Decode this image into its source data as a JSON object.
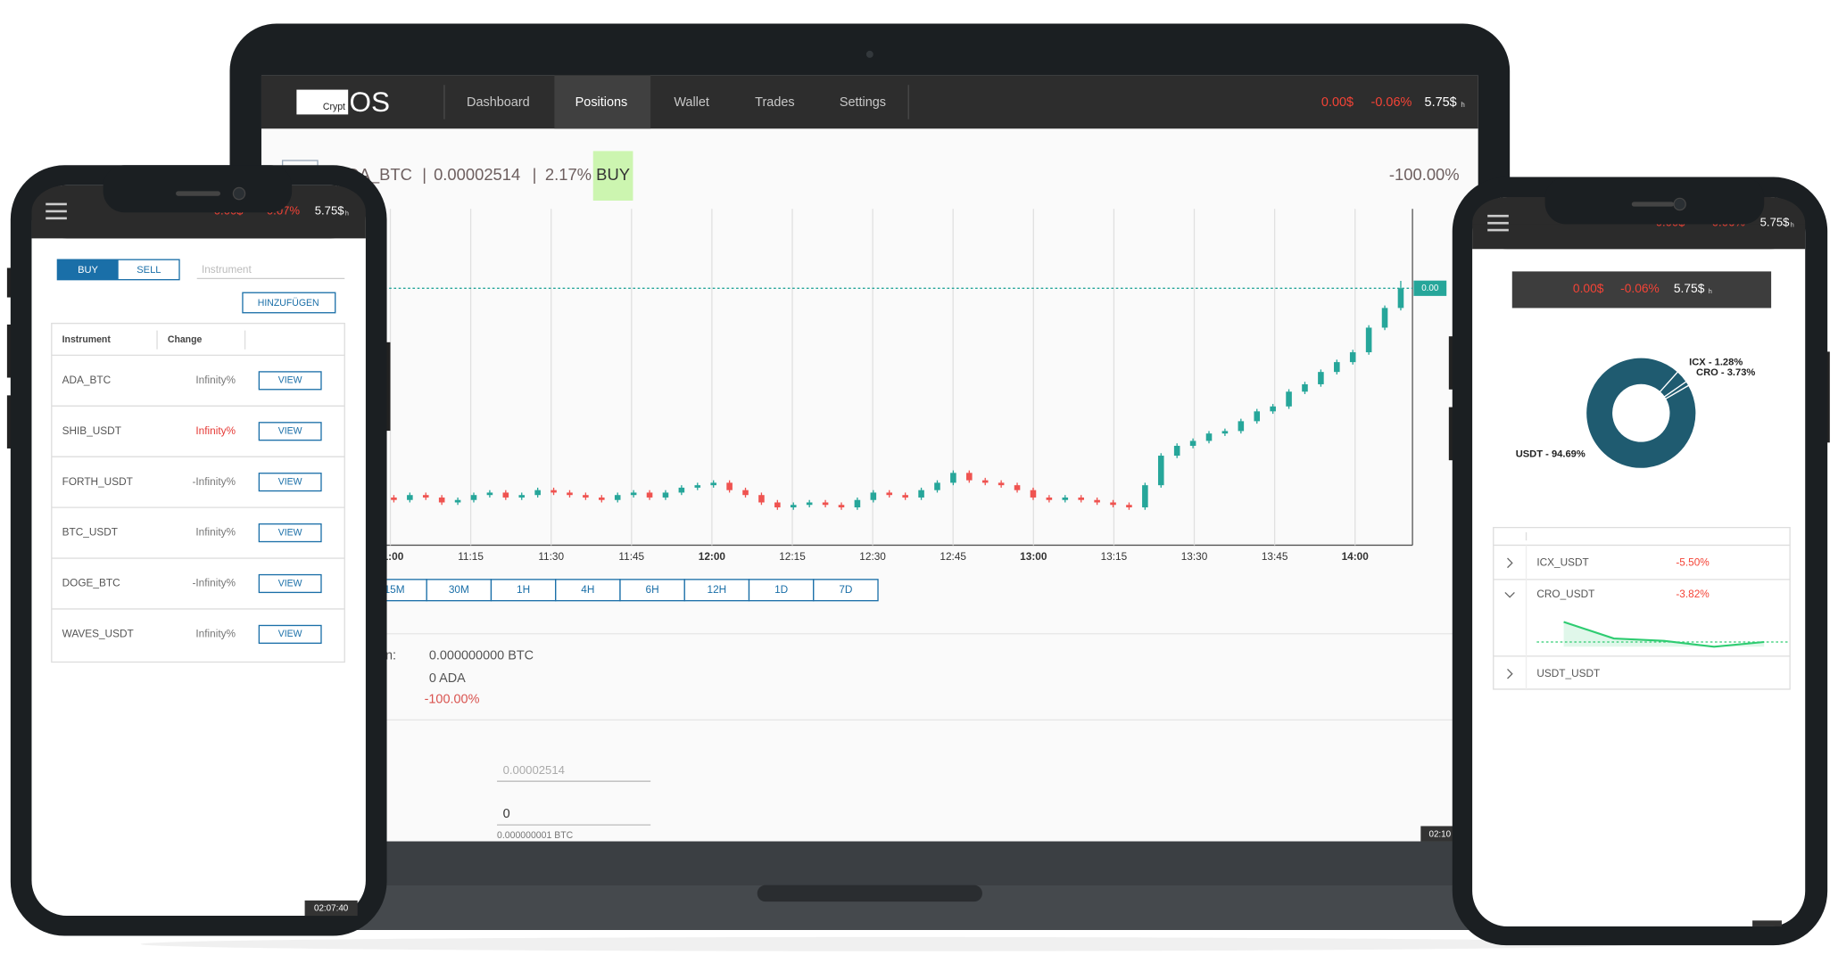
{
  "laptop": {
    "logo": {
      "small": "Crypt",
      "large": "OS"
    },
    "nav": [
      "Dashboard",
      "Positions",
      "Wallet",
      "Trades",
      "Settings"
    ],
    "active_nav": 1,
    "ticker": {
      "profit": "0.00$",
      "change": "-0.06%",
      "balance": "5.75$",
      "unit": "h"
    },
    "header": {
      "pair": "ADA_BTC",
      "separator": "|",
      "price": "0.00002514",
      "change": "2.17%",
      "signal": "BUY",
      "total": "-100.00%"
    },
    "timeframes": [
      "15M",
      "30M",
      "1H",
      "4H",
      "6H",
      "12H",
      "1D",
      "7D"
    ],
    "position": {
      "label": "Position:",
      "btc": "0.000000000 BTC",
      "ada": "0 ADA",
      "pnl": "-100.00%"
    },
    "order": {
      "price": "0.00002514",
      "amount": "0",
      "step": "0.000000001 BTC"
    },
    "clock": "02:10"
  },
  "phone_left": {
    "ticker": {
      "profit": "0.00$",
      "change": "-0.07%",
      "balance": "5.75$",
      "unit": "h"
    },
    "toggle": [
      "BUY",
      "SELL"
    ],
    "instrument_placeholder": "Instrument",
    "add_button": "HINZUFÜGEN",
    "columns": [
      "Instrument",
      "Change"
    ],
    "rows": [
      {
        "instrument": "ADA_BTC",
        "change": "Infinity%",
        "color": "#777777",
        "action": "VIEW"
      },
      {
        "instrument": "SHIB_USDT",
        "change": "Infinity%",
        "color": "#e53935",
        "action": "VIEW"
      },
      {
        "instrument": "FORTH_USDT",
        "change": "-Infinity%",
        "color": "#777777",
        "action": "VIEW"
      },
      {
        "instrument": "BTC_USDT",
        "change": "Infinity%",
        "color": "#777777",
        "action": "VIEW"
      },
      {
        "instrument": "DOGE_BTC",
        "change": "-Infinity%",
        "color": "#777777",
        "action": "VIEW"
      },
      {
        "instrument": "WAVES_USDT",
        "change": "Infinity%",
        "color": "#777777",
        "action": "VIEW"
      }
    ],
    "clock": "02:07:40"
  },
  "phone_right": {
    "ticker": {
      "profit": "0.00$",
      "change": "-0.06%",
      "balance": "5.75$",
      "unit": "h"
    },
    "summary": {
      "profit": "0.00$",
      "change": "-0.06%",
      "balance": "5.75$",
      "unit": "h"
    },
    "rows": [
      {
        "instrument": "ICX_USDT",
        "change": "-5.50%"
      },
      {
        "instrument": "CRO_USDT",
        "change": "-3.82%"
      },
      {
        "instrument": "USDT_USDT"
      }
    ]
  },
  "chart_data": [
    {
      "type": "candlestick",
      "x_labels": [
        "11:00",
        "11:15",
        "11:30",
        "11:45",
        "12:00",
        "12:15",
        "12:30",
        "12:45",
        "13:00",
        "13:15",
        "13:30",
        "13:45",
        "14:00"
      ],
      "bold_x_labels": [
        0,
        4,
        8,
        12
      ],
      "open": [
        7,
        6,
        8,
        7,
        5,
        6,
        8,
        9,
        7,
        8,
        10,
        9,
        8,
        7,
        6,
        8,
        9,
        7,
        9,
        11,
        12,
        13,
        10,
        8,
        5,
        3,
        4,
        5,
        4,
        3,
        6,
        9,
        8,
        7,
        10,
        13,
        17,
        14,
        13,
        12,
        10,
        7,
        6,
        7,
        6,
        5,
        4,
        3,
        12,
        24,
        28,
        30,
        33,
        34,
        38,
        42,
        44,
        50,
        53,
        58,
        62,
        66,
        76,
        84
      ],
      "high": [
        8,
        9,
        9,
        8,
        7,
        9,
        10,
        10,
        9,
        11,
        11,
        10,
        9,
        8,
        9,
        10,
        10,
        10,
        12,
        13,
        14,
        14,
        11,
        9,
        6,
        5,
        6,
        6,
        5,
        7,
        10,
        10,
        9,
        11,
        14,
        18,
        18,
        15,
        14,
        13,
        11,
        8,
        8,
        8,
        7,
        6,
        5,
        13,
        25,
        29,
        31,
        34,
        35,
        39,
        43,
        45,
        51,
        54,
        59,
        63,
        67,
        77,
        85,
        95
      ],
      "low": [
        5,
        5,
        6,
        4,
        4,
        5,
        7,
        6,
        6,
        7,
        8,
        7,
        6,
        5,
        5,
        7,
        6,
        6,
        8,
        10,
        11,
        9,
        7,
        4,
        2,
        2,
        3,
        3,
        2,
        2,
        5,
        7,
        6,
        6,
        9,
        12,
        13,
        12,
        11,
        9,
        6,
        5,
        5,
        5,
        4,
        3,
        2,
        2,
        11,
        23,
        27,
        29,
        32,
        33,
        37,
        41,
        43,
        49,
        52,
        57,
        61,
        65,
        75,
        83
      ],
      "close": [
        6,
        8,
        7,
        5,
        6,
        8,
        9,
        7,
        8,
        10,
        9,
        8,
        7,
        6,
        8,
        9,
        7,
        9,
        11,
        12,
        13,
        10,
        8,
        5,
        3,
        4,
        5,
        4,
        3,
        6,
        9,
        8,
        7,
        10,
        13,
        17,
        14,
        13,
        12,
        10,
        7,
        6,
        7,
        6,
        5,
        4,
        3,
        12,
        24,
        28,
        30,
        33,
        34,
        38,
        42,
        44,
        50,
        53,
        58,
        62,
        66,
        76,
        84,
        92
      ],
      "up_color": "#26a69a",
      "down_color": "#ef5350",
      "last_price_label": "0.00"
    },
    {
      "type": "pie",
      "labels": [
        "USDT - 94.69%",
        "CRO - 3.73%",
        "ICX - 1.28%"
      ],
      "values": [
        94.69,
        3.73,
        1.28
      ],
      "colors": [
        "#1f5b70",
        "#1f5b70",
        "#1f5b70"
      ]
    },
    {
      "type": "line",
      "values": [
        5.2,
        2.4,
        2.0,
        1.0,
        1.8
      ],
      "color": "#2ecc71"
    }
  ]
}
